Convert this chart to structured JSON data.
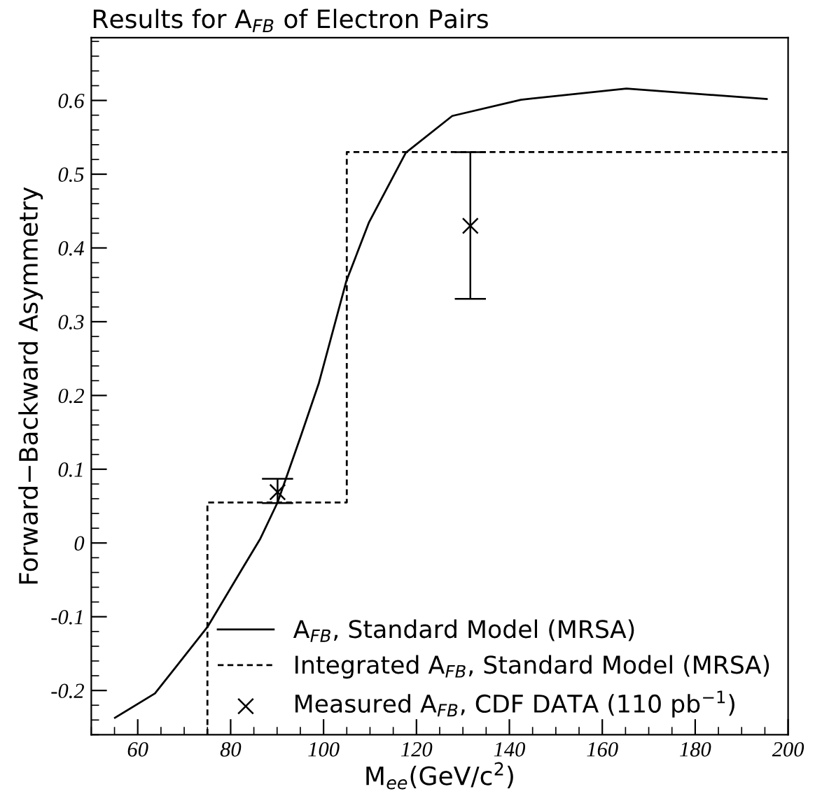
{
  "chart_data": {
    "type": "line",
    "title": "Results for A$_{FB}$ of Electron Pairs",
    "xlabel": "M$_{ee}$(GeV/c$^{2}$)",
    "ylabel": "Forward−Backward Asymmetry",
    "xlim": [
      50,
      200
    ],
    "ylim": [
      -0.26,
      0.685
    ],
    "xticks": [
      60,
      80,
      100,
      120,
      140,
      160,
      180,
      200
    ],
    "yticks": [
      -0.2,
      -0.1,
      0,
      0.1,
      0.2,
      0.3,
      0.4,
      0.5,
      0.6
    ],
    "grid": false,
    "legend": "bottom right",
    "series": [
      {
        "name": "A$_{FB}$, Standard Model (MRSA)",
        "line_style": "solid",
        "color": "#000000",
        "x": [
          55.1,
          63.7,
          75.0,
          82.3,
          86.4,
          90.1,
          95.0,
          99.0,
          104.9,
          109.8,
          117.7,
          127.7,
          142.5,
          165.2,
          195.4
        ],
        "values": [
          -0.237,
          -0.204,
          -0.114,
          -0.037,
          0.006,
          0.055,
          0.143,
          0.217,
          0.355,
          0.435,
          0.529,
          0.579,
          0.601,
          0.616,
          0.602
        ]
      },
      {
        "name": "Integrated A$_{FB}$, Standard Model (MRSA)",
        "line_style": "dashed",
        "color": "#000000",
        "x": [
          75,
          75,
          105,
          105,
          200
        ],
        "values": [
          -0.26,
          0.055,
          0.055,
          0.53,
          0.53
        ]
      },
      {
        "name": "Measured A$_{FB}$, CDF DATA (110 pb$^{−1}$)",
        "type": "scatter",
        "marker": "cross",
        "color": "#000000",
        "x": [
          90.1,
          131.6
        ],
        "values": [
          0.069,
          0.43
        ],
        "errors": [
          [
            0.054,
            0.087
          ],
          [
            0.331,
            0.53
          ]
        ]
      }
    ]
  }
}
